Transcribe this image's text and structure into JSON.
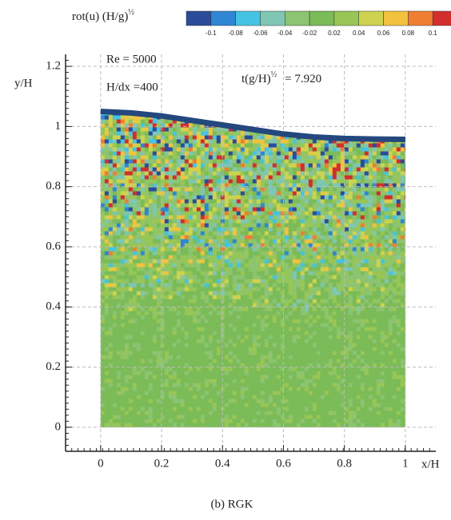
{
  "chart_data": {
    "type": "field",
    "colorbar": {
      "title": "rot(u) (H/g)",
      "title_sup": "½",
      "ticks": [
        -0.1,
        -0.08,
        -0.06,
        -0.04,
        -0.02,
        0.02,
        0.04,
        0.06,
        0.08,
        0.1
      ],
      "colors": [
        "#2b4c9b",
        "#2f86d4",
        "#44c4e2",
        "#7fc6b4",
        "#8cc472",
        "#7bbb58",
        "#98c656",
        "#cfd24e",
        "#f2c23e",
        "#ef7e32",
        "#d22e2e"
      ]
    },
    "annotations": {
      "re": "Re = 5000",
      "res": "H/dx =400",
      "time": "t(g/H)",
      "time_sup": "½",
      "time_value": "=   7.920"
    },
    "xlabel": "x/H",
    "ylabel": "y/H",
    "caption": "(b)  RGK",
    "xlim": [
      -0.115,
      1.1
    ],
    "ylim": [
      -0.08,
      1.24
    ],
    "xticks": [
      0,
      0.2,
      0.4,
      0.6,
      0.8,
      1
    ],
    "yticks": [
      0,
      0.2,
      0.4,
      0.6,
      0.8,
      1,
      1.2
    ],
    "grid": true,
    "surface": {
      "color": "#24487e",
      "x": [
        0,
        0.1,
        0.2,
        0.3,
        0.4,
        0.5,
        0.6,
        0.7,
        0.8,
        0.9,
        1
      ],
      "values": [
        1.05,
        1.045,
        1.035,
        1.02,
        1.005,
        0.99,
        0.975,
        0.965,
        0.96,
        0.958,
        0.957
      ]
    }
  }
}
